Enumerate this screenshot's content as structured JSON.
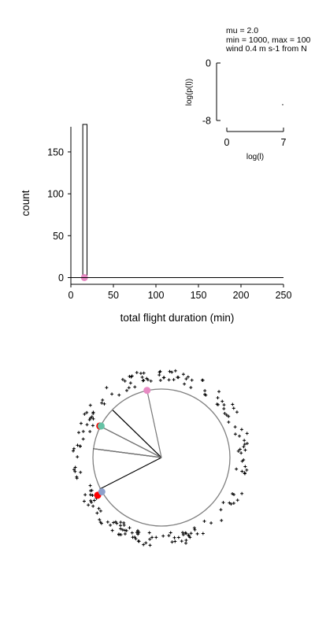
{
  "annotation": {
    "line1": "mu = 2.0",
    "line2": "min = 1000, max = 100",
    "line3": "wind 0.4 m s-1 from N"
  },
  "chart_data": [
    {
      "type": "bar",
      "panel": "histogram",
      "xlabel": "total flight duration (min)",
      "ylabel": "count",
      "xlim": [
        0,
        250
      ],
      "ylim": [
        -8,
        180
      ],
      "xticks": [
        "0",
        "50",
        "100",
        "150",
        "200",
        "250"
      ],
      "yticks": [
        "0",
        "50",
        "100",
        "150"
      ],
      "bins": [
        {
          "x0": 14,
          "x1": 19,
          "count": 200
        }
      ],
      "marker": {
        "x": 15,
        "y": 0,
        "color": "#e78ac3"
      },
      "grid": false
    },
    {
      "type": "line",
      "panel": "inset",
      "xlabel": "log(l)",
      "ylabel": "log(p(l))",
      "xlim": [
        0,
        7
      ],
      "ylim": [
        -8,
        0
      ],
      "xticks": [
        "0",
        "7"
      ],
      "yticks": [
        "0",
        "-8"
      ],
      "points": [
        {
          "x": 6.9,
          "y": -5.8
        }
      ],
      "grid": false
    },
    {
      "type": "scatter",
      "panel": "trajectory-map",
      "circle_radius": 1,
      "path": [
        {
          "x": -0.9,
          "y": -0.46
        },
        {
          "x": 0,
          "y": 0
        },
        {
          "x": -1.0,
          "y": 0.13
        },
        {
          "x": 0,
          "y": 0
        },
        {
          "x": -0.71,
          "y": 0.69
        },
        {
          "x": 0,
          "y": 0
        },
        {
          "x": -0.9,
          "y": 0.46
        },
        {
          "x": 0,
          "y": 0
        },
        {
          "x": -0.21,
          "y": 0.98
        }
      ],
      "points": [
        {
          "x": -0.21,
          "y": 0.98,
          "color": "#e78ac3"
        },
        {
          "x": -0.9,
          "y": 0.46,
          "color": "#ff0000"
        },
        {
          "x": -0.88,
          "y": 0.46,
          "color": "#66c2a5"
        },
        {
          "x": -0.93,
          "y": -0.55,
          "color": "#ff0000"
        },
        {
          "x": -0.87,
          "y": -0.5,
          "color": "#8da0cb"
        }
      ],
      "outer_sample_count": 200,
      "outer_radius_range": [
        1.1,
        1.3
      ],
      "grid": false
    }
  ]
}
